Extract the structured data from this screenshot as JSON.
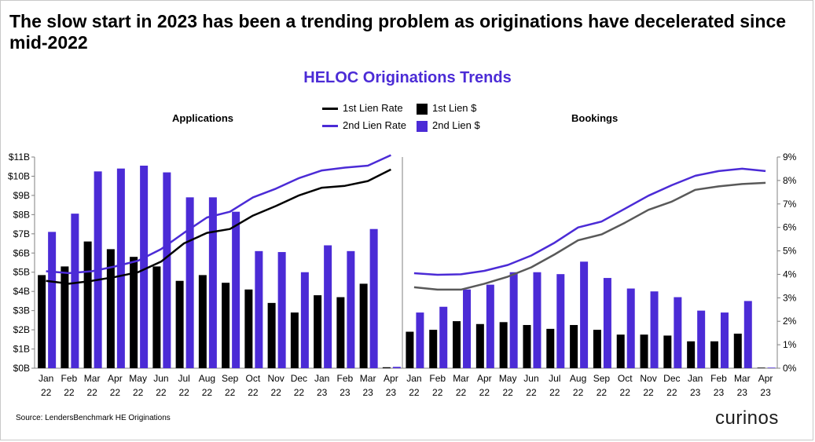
{
  "headline": "The slow start in 2023 has been a trending problem as originations have decelerated since mid-2022",
  "source": "Source: LendersBenchmark HE Originations",
  "logo_text": "curinos",
  "colors": {
    "title": "#4b2bd6",
    "second_lien": "#4b2bd6",
    "first_lien_bar": "#000000",
    "first_lien_rate_applications": "#000000",
    "first_lien_rate_bookings": "#595959"
  },
  "chart_data": {
    "type": "bar",
    "title": "HELOC Originations Trends",
    "legend": {
      "placement": "top-center",
      "items": [
        {
          "label": "1st Lien Rate",
          "kind": "line",
          "color": "#000000"
        },
        {
          "label": "1st Lien $",
          "kind": "bar",
          "color": "#000000"
        },
        {
          "label": "2nd Lien Rate",
          "kind": "line",
          "color": "#4b2bd6"
        },
        {
          "label": "2nd Lien $",
          "kind": "bar",
          "color": "#4b2bd6"
        }
      ]
    },
    "categories": [
      {
        "month": "Jan",
        "year": "22"
      },
      {
        "month": "Feb",
        "year": "22"
      },
      {
        "month": "Mar",
        "year": "22"
      },
      {
        "month": "Apr",
        "year": "22"
      },
      {
        "month": "May",
        "year": "22"
      },
      {
        "month": "Jun",
        "year": "22"
      },
      {
        "month": "Jul",
        "year": "22"
      },
      {
        "month": "Aug",
        "year": "22"
      },
      {
        "month": "Sep",
        "year": "22"
      },
      {
        "month": "Oct",
        "year": "22"
      },
      {
        "month": "Nov",
        "year": "22"
      },
      {
        "month": "Dec",
        "year": "22"
      },
      {
        "month": "Jan",
        "year": "23"
      },
      {
        "month": "Feb",
        "year": "23"
      },
      {
        "month": "Mar",
        "year": "23"
      },
      {
        "month": "Apr",
        "year": "23"
      }
    ],
    "left_axis": {
      "min": 0,
      "max": 11,
      "unit": "B",
      "ticks": [
        "$0B",
        "$1B",
        "$2B",
        "$3B",
        "$4B",
        "$5B",
        "$6B",
        "$7B",
        "$8B",
        "$9B",
        "$10B",
        "$11B"
      ]
    },
    "right_axis": {
      "min": 0,
      "max": 9,
      "unit": "%",
      "ticks": [
        "0%",
        "1%",
        "2%",
        "3%",
        "4%",
        "5%",
        "6%",
        "7%",
        "8%",
        "9%"
      ]
    },
    "grid": false,
    "panels": [
      {
        "title": "Applications",
        "series": [
          {
            "name": "1st Lien $",
            "type": "bar",
            "axis": "left",
            "values": [
              4.85,
              5.3,
              6.6,
              6.2,
              5.8,
              5.3,
              4.55,
              4.85,
              4.45,
              4.1,
              3.4,
              2.9,
              3.8,
              3.7,
              4.4,
              0.05
            ]
          },
          {
            "name": "2nd Lien $",
            "type": "bar",
            "axis": "left",
            "values": [
              7.1,
              8.05,
              10.25,
              10.4,
              10.55,
              10.2,
              8.9,
              8.9,
              8.15,
              6.1,
              6.05,
              5.0,
              6.4,
              6.1,
              7.25,
              0.07
            ]
          },
          {
            "name": "1st Lien Rate",
            "type": "line",
            "axis": "left",
            "values": [
              4.55,
              4.4,
              4.55,
              4.75,
              5.0,
              5.55,
              6.5,
              7.05,
              7.25,
              7.95,
              8.45,
              9.0,
              9.4,
              9.5,
              9.75,
              10.35
            ]
          },
          {
            "name": "2nd Lien Rate",
            "type": "line",
            "axis": "left",
            "values": [
              5.05,
              4.95,
              5.05,
              5.3,
              5.6,
              6.2,
              7.05,
              7.85,
              8.15,
              8.9,
              9.35,
              9.9,
              10.3,
              10.45,
              10.55,
              11.1
            ]
          }
        ]
      },
      {
        "title": "Bookings",
        "series": [
          {
            "name": "1st Lien $",
            "type": "bar",
            "axis": "left",
            "values": [
              1.9,
              2.0,
              2.45,
              2.3,
              2.4,
              2.25,
              2.05,
              2.25,
              2.0,
              1.75,
              1.75,
              1.7,
              1.4,
              1.4,
              1.8,
              0.03
            ]
          },
          {
            "name": "2nd Lien $",
            "type": "bar",
            "axis": "left",
            "values": [
              2.9,
              3.2,
              4.1,
              4.35,
              5.0,
              5.0,
              4.9,
              5.55,
              4.7,
              4.15,
              4.0,
              3.7,
              3.0,
              2.9,
              3.5,
              0.03
            ]
          },
          {
            "name": "1st Lien Rate",
            "type": "line",
            "axis": "right",
            "values": [
              3.45,
              3.35,
              3.35,
              3.6,
              3.9,
              4.3,
              4.85,
              5.45,
              5.7,
              6.2,
              6.75,
              7.1,
              7.6,
              7.75,
              7.85,
              7.9
            ]
          },
          {
            "name": "2nd Lien Rate",
            "type": "line",
            "axis": "right",
            "values": [
              4.05,
              3.98,
              4.0,
              4.15,
              4.4,
              4.8,
              5.35,
              6.0,
              6.25,
              6.8,
              7.35,
              7.8,
              8.2,
              8.4,
              8.5,
              8.4
            ]
          }
        ]
      }
    ]
  }
}
